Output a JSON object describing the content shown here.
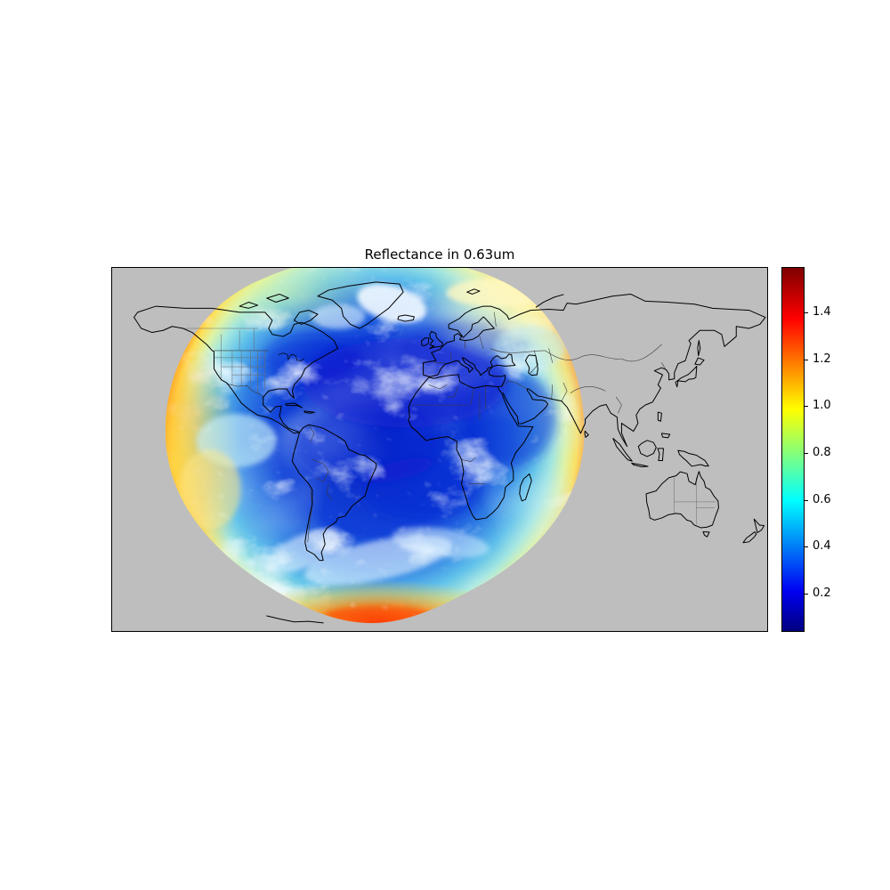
{
  "figure": {
    "title": "Reflectance in 0.63um"
  },
  "chart_data": {
    "type": "heatmap",
    "title": "Reflectance in 0.63um",
    "variable": "visible reflectance at 0.63 um",
    "description": "Geostationary satellite full-disk visible reflectance overlaid on a plate-carree world map. The disk covers North and South America, the Atlantic Ocean, Europe and western Africa. Clear ocean is dark blue (reflectance ~0.05-0.3), cloud fields are cyan to pale green and yellow (~0.4-1.0), and the western and southern limb of the disk brightens to orange and red (>1.2). Regions outside the satellite field of view are flat gray with black coastlines and thin country/state borders.",
    "projection": "plate-carree",
    "map_extent": {
      "lon": [
        -180,
        180
      ],
      "lat": [
        -90,
        90
      ]
    },
    "grid": false,
    "legend_position": "right colorbar",
    "colormap": "jet",
    "colormap_stops": [
      {
        "pos": 0.0,
        "color": "#00007f"
      },
      {
        "pos": 0.11,
        "color": "#0000f1"
      },
      {
        "pos": 0.36,
        "color": "#00ffff"
      },
      {
        "pos": 0.61,
        "color": "#ffff00"
      },
      {
        "pos": 0.86,
        "color": "#ff0000"
      },
      {
        "pos": 1.0,
        "color": "#7f0000"
      }
    ],
    "colorbar": {
      "orientation": "vertical",
      "vmin": 0.04,
      "vmax": 1.59,
      "ticks": [
        1.4,
        1.2,
        1.0,
        0.8,
        0.6,
        0.4,
        0.2
      ],
      "tick_labels": [
        "1.4",
        "1.2",
        "1.0",
        "0.8",
        "0.6",
        "0.4",
        "0.2"
      ]
    },
    "map_colors": {
      "out_of_view_background": "#bebebe",
      "coastline": "#000000",
      "country_border": "#3c3c3c",
      "state_border": "#6a6a6a",
      "page_background": "#ffffff"
    }
  }
}
